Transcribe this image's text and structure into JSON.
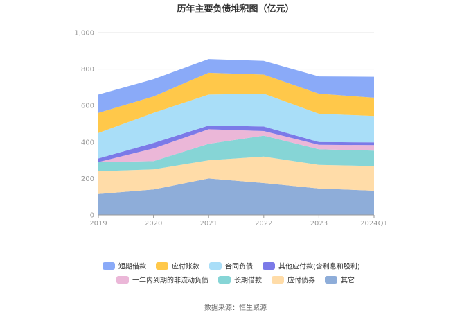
{
  "chart_data": {
    "type": "area",
    "stacked": true,
    "title": "历年主要负债堆积图（亿元）",
    "categories": [
      "2019",
      "2020",
      "2021",
      "2022",
      "2023",
      "2024Q1"
    ],
    "ylim": [
      0,
      1000
    ],
    "yticks": [
      "0",
      "200",
      "400",
      "600",
      "800",
      "1,000"
    ],
    "grid": true,
    "legend_position": "bottom",
    "series": [
      {
        "name": "其它",
        "color": "#8eadd9",
        "values": [
          115,
          140,
          200,
          175,
          145,
          133
        ]
      },
      {
        "name": "应付债券",
        "color": "#ffdca8",
        "values": [
          125,
          110,
          100,
          145,
          130,
          135
        ]
      },
      {
        "name": "长期借款",
        "color": "#86d5d6",
        "values": [
          50,
          45,
          90,
          115,
          85,
          85
        ]
      },
      {
        "name": "一年内到期的非流动负债",
        "color": "#ebb7d8",
        "values": [
          0,
          70,
          80,
          25,
          25,
          30
        ]
      },
      {
        "name": "其他应付款(含利息和股利)",
        "color": "#7b7ae8",
        "values": [
          20,
          30,
          20,
          25,
          15,
          15
        ]
      },
      {
        "name": "合同负债",
        "color": "#a9def8",
        "values": [
          140,
          165,
          170,
          180,
          155,
          145
        ]
      },
      {
        "name": "应付账款",
        "color": "#ffc84a",
        "values": [
          110,
          90,
          120,
          105,
          110,
          100
        ]
      },
      {
        "name": "短期借款",
        "color": "#8aaaf8",
        "values": [
          100,
          95,
          75,
          75,
          95,
          115
        ]
      }
    ],
    "legend_order": [
      "短期借款",
      "应付账款",
      "合同负债",
      "其他应付款(含利息和股利)",
      "一年内到期的非流动负债",
      "长期借款",
      "应付债券",
      "其它"
    ]
  },
  "source": "数据来源：恒生聚源"
}
